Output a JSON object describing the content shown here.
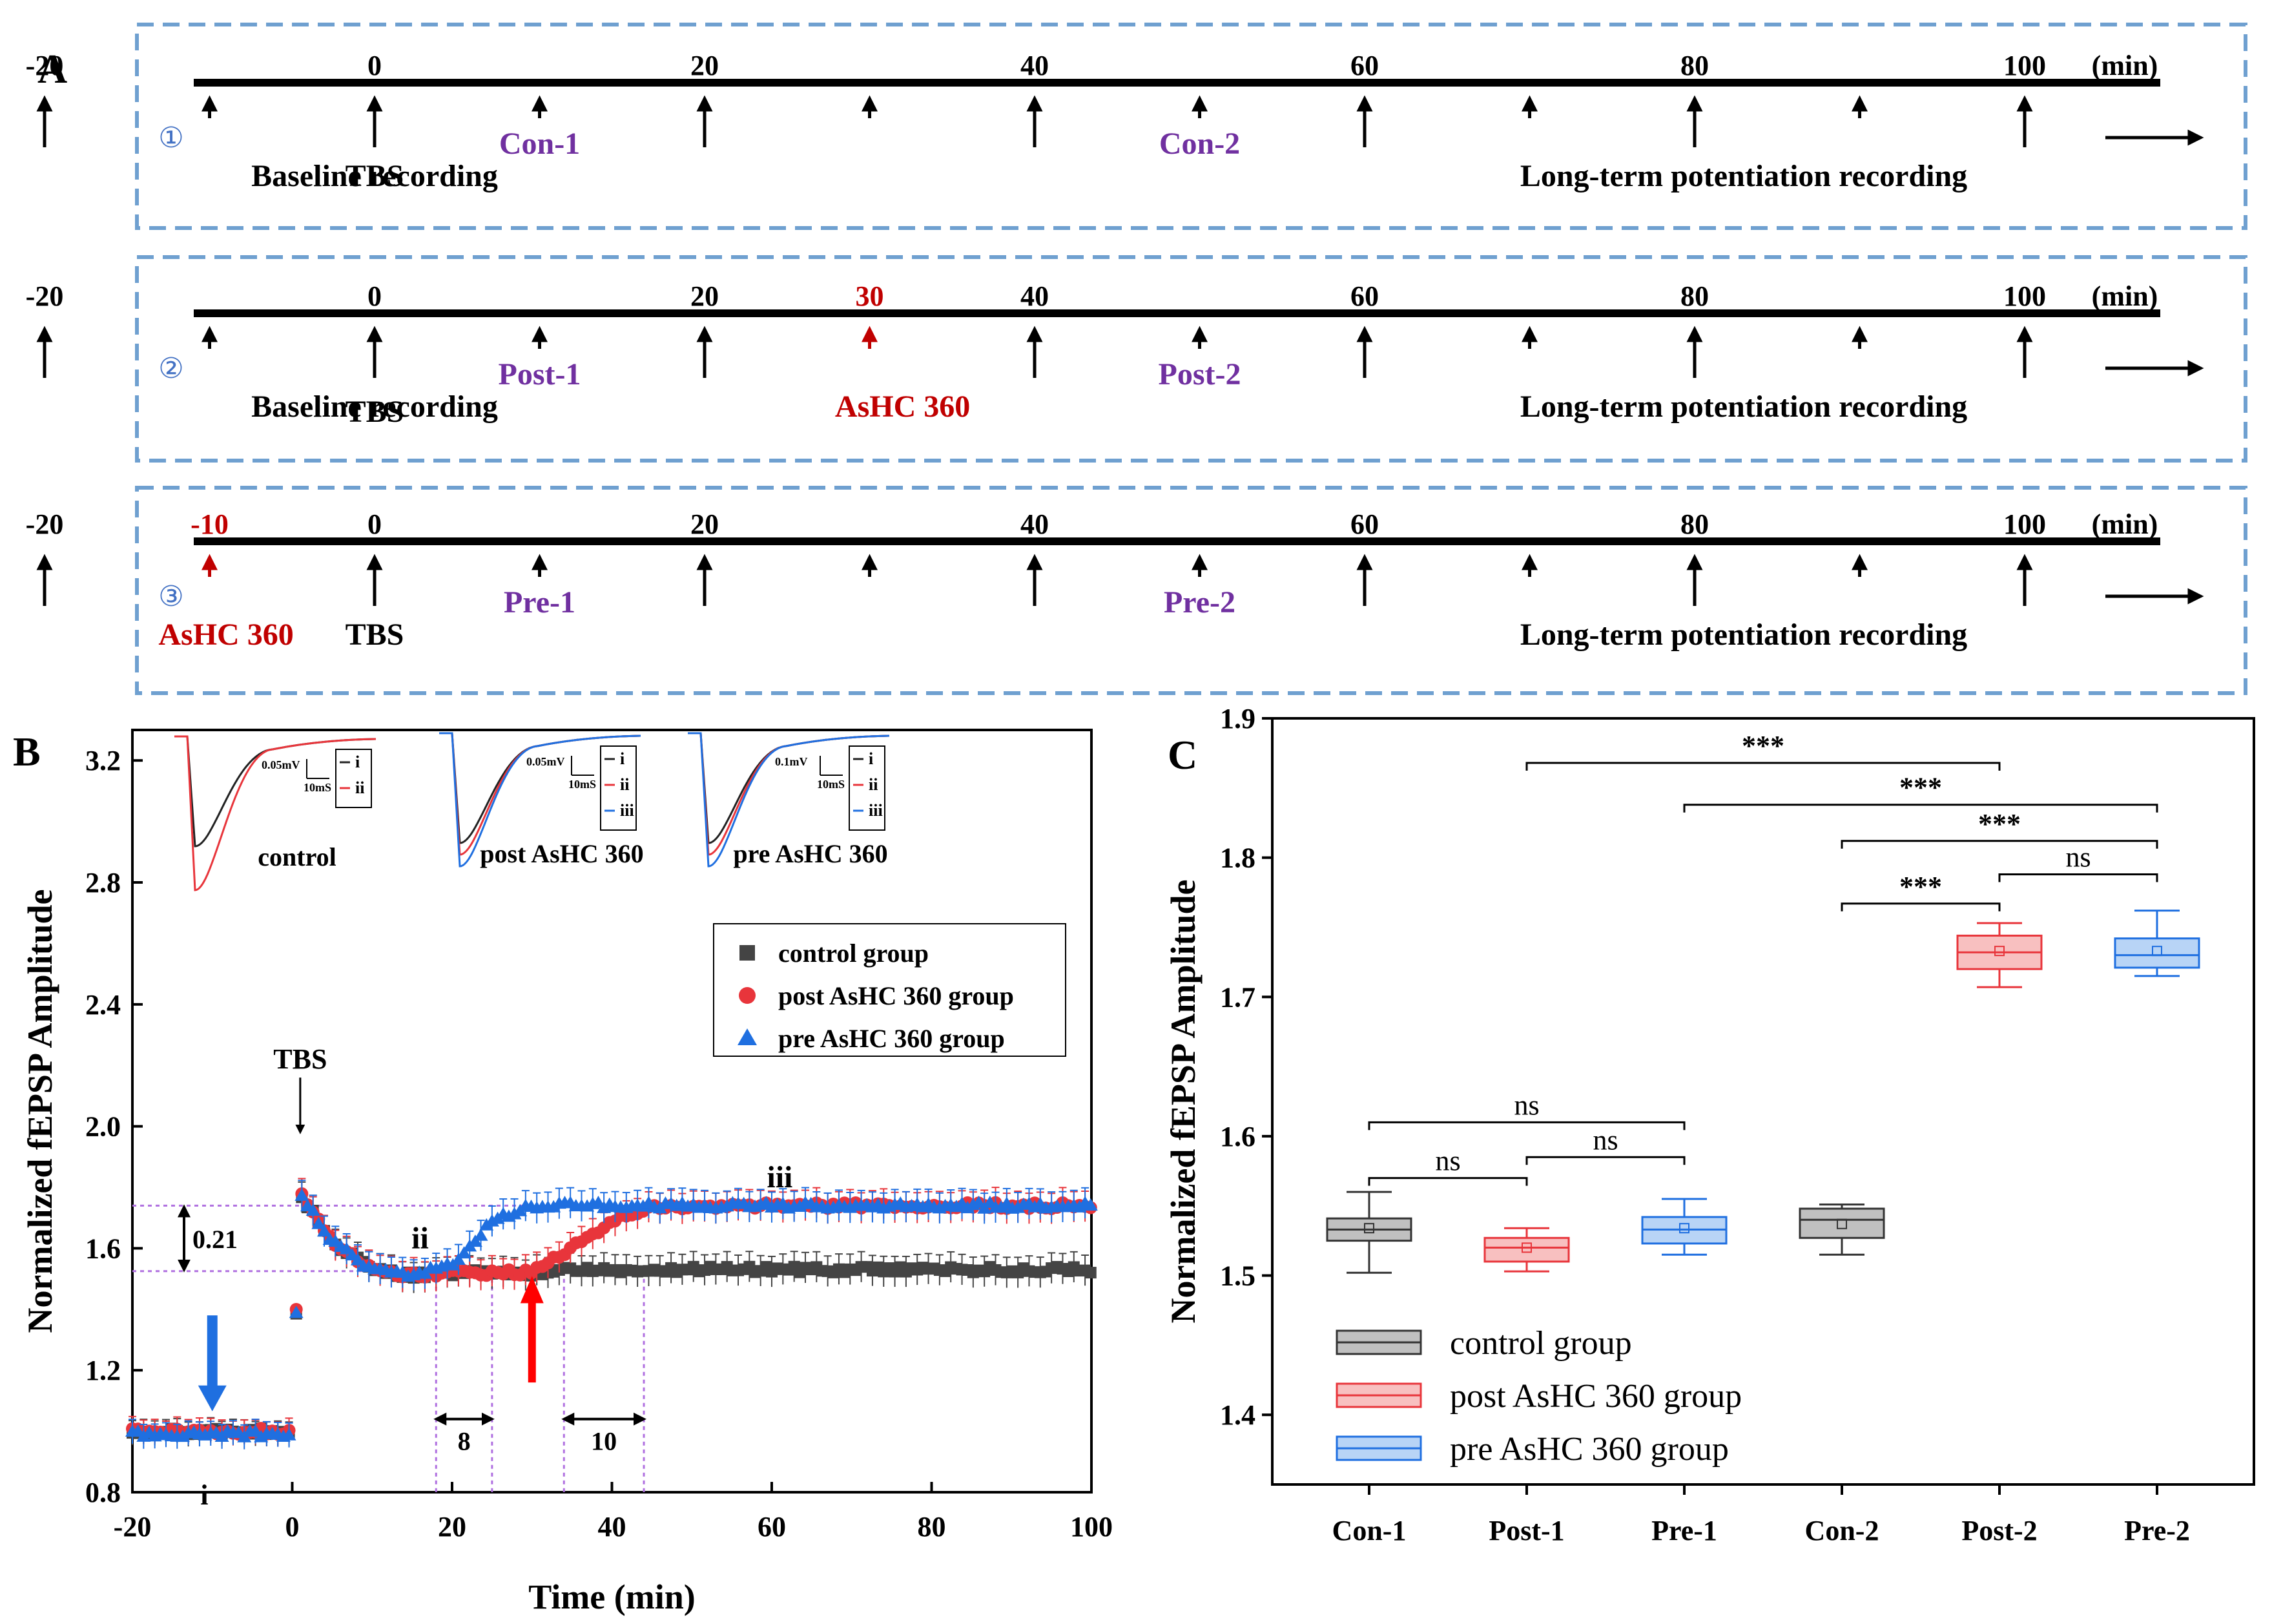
{
  "panel_a": {
    "letter": "A",
    "unit": "(min)",
    "rows": [
      {
        "circle": "①",
        "ticks": [
          "-20",
          "0",
          "20",
          "40",
          "60",
          "80",
          "100"
        ],
        "red_tick": "",
        "labels": {
          "baseline": "Baseline recording",
          "tbs": "TBS",
          "mid1": "Con-1",
          "mid2": "Con-2",
          "red": "",
          "ltp": "Long-term potentiation recording"
        }
      },
      {
        "circle": "②",
        "ticks": [
          "-20",
          "0",
          "20",
          "40",
          "60",
          "80",
          "100"
        ],
        "red_tick": "30",
        "labels": {
          "baseline": "Baseline recording",
          "tbs": "TBS",
          "mid1": "Post-1",
          "mid2": "Post-2",
          "red": "AsHC 360",
          "ltp": "Long-term potentiation recording"
        }
      },
      {
        "circle": "③",
        "ticks": [
          "-20",
          "0",
          "20",
          "40",
          "60",
          "80",
          "100"
        ],
        "red_tick": "-10",
        "labels": {
          "baseline": "",
          "tbs": "TBS",
          "mid1": "Pre-1",
          "mid2": "Pre-2",
          "red": "AsHC 360",
          "ltp": "Long-term potentiation recording"
        }
      }
    ]
  },
  "panel_b": {
    "letter": "B",
    "tbs_label": "TBS",
    "diff_label": "0.21",
    "gap1_label": "8",
    "gap2_label": "10",
    "roman": {
      "i": "i",
      "ii": "ii",
      "iii": "iii"
    },
    "insets": [
      {
        "title": "control",
        "scale": "0.05mV",
        "time": "10mS",
        "legend": [
          "i",
          "ii"
        ]
      },
      {
        "title": "post AsHC 360",
        "scale": "0.05mV",
        "time": "10mS",
        "legend": [
          "i",
          "ii",
          "iii"
        ]
      },
      {
        "title": "pre AsHC 360",
        "scale": "0.1mV",
        "time": "10mS",
        "legend": [
          "i",
          "ii",
          "iii"
        ]
      }
    ]
  },
  "panel_c": {
    "letter": "C"
  },
  "colors": {
    "control": "#444444",
    "post": "#e8353b",
    "pre": "#1f6fe0",
    "purple": "#7030a0",
    "red": "#c00000",
    "dashed_box": "#6fa0d0",
    "guide": "#b070e0"
  },
  "chart_data": [
    {
      "type": "line",
      "title": "",
      "xlabel": "Time (min)",
      "ylabel": "Normalized fEPSP Amplitude",
      "xlim": [
        -20,
        100
      ],
      "ylim": [
        0.8,
        3.3
      ],
      "xticks": [
        -20,
        0,
        20,
        40,
        60,
        80,
        100
      ],
      "yticks": [
        0.8,
        1.2,
        1.6,
        2.0,
        2.4,
        2.8,
        3.2
      ],
      "legend_position": "right",
      "series": [
        {
          "name": "control group",
          "marker": "square",
          "x": [
            -20,
            -10,
            0,
            1,
            5,
            10,
            15,
            20,
            25,
            30,
            35,
            40,
            50,
            60,
            70,
            80,
            90,
            100
          ],
          "y": [
            1.0,
            1.0,
            1.0,
            1.78,
            1.62,
            1.53,
            1.51,
            1.52,
            1.52,
            1.52,
            1.53,
            1.53,
            1.53,
            1.53,
            1.53,
            1.53,
            1.53,
            1.53
          ]
        },
        {
          "name": "post AsHC 360 group",
          "marker": "circle",
          "x": [
            -20,
            -10,
            0,
            1,
            5,
            10,
            15,
            20,
            25,
            30,
            35,
            40,
            45,
            50,
            60,
            70,
            80,
            90,
            100
          ],
          "y": [
            1.0,
            1.0,
            1.0,
            1.78,
            1.62,
            1.53,
            1.51,
            1.52,
            1.52,
            1.52,
            1.6,
            1.69,
            1.73,
            1.74,
            1.74,
            1.74,
            1.74,
            1.74,
            1.74
          ]
        },
        {
          "name": "pre AsHC 360 group",
          "marker": "triangle",
          "x": [
            -20,
            -10,
            0,
            1,
            5,
            10,
            15,
            20,
            25,
            30,
            35,
            40,
            50,
            60,
            70,
            80,
            90,
            100
          ],
          "y": [
            0.99,
            0.99,
            0.99,
            1.78,
            1.62,
            1.53,
            1.51,
            1.55,
            1.69,
            1.74,
            1.74,
            1.74,
            1.74,
            1.74,
            1.74,
            1.74,
            1.74,
            1.74
          ]
        }
      ],
      "annotations": [
        "TBS",
        "0.21",
        "8",
        "10",
        "i",
        "ii",
        "iii"
      ]
    },
    {
      "type": "box",
      "title": "",
      "xlabel": "",
      "ylabel": "Normalized fEPSP Amplitude",
      "ylim": [
        1.35,
        1.9
      ],
      "yticks": [
        1.4,
        1.5,
        1.6,
        1.7,
        1.8,
        1.9
      ],
      "categories": [
        "Con-1",
        "Post-1",
        "Pre-1",
        "Con-2",
        "Post-2",
        "Pre-2"
      ],
      "groups": [
        "control",
        "post",
        "pre",
        "control",
        "post",
        "pre"
      ],
      "legend": [
        "control group",
        "post AsHC 360 group",
        "pre AsHC 360 group"
      ],
      "boxes": [
        {
          "min": 1.502,
          "q1": 1.525,
          "median": 1.533,
          "mean": 1.534,
          "q3": 1.541,
          "max": 1.56
        },
        {
          "min": 1.503,
          "q1": 1.51,
          "median": 1.52,
          "mean": 1.52,
          "q3": 1.527,
          "max": 1.534
        },
        {
          "min": 1.515,
          "q1": 1.523,
          "median": 1.533,
          "mean": 1.534,
          "q3": 1.542,
          "max": 1.555
        },
        {
          "min": 1.515,
          "q1": 1.527,
          "median": 1.54,
          "mean": 1.537,
          "q3": 1.548,
          "max": 1.551
        },
        {
          "min": 1.707,
          "q1": 1.72,
          "median": 1.732,
          "mean": 1.733,
          "q3": 1.744,
          "max": 1.753
        },
        {
          "min": 1.715,
          "q1": 1.721,
          "median": 1.73,
          "mean": 1.733,
          "q3": 1.742,
          "max": 1.762
        }
      ],
      "significance": [
        {
          "from": "Post-1",
          "to": "Post-2",
          "label": "***",
          "y": 1.868
        },
        {
          "from": "Pre-1",
          "to": "Pre-2",
          "label": "***",
          "y": 1.838
        },
        {
          "from": "Con-2",
          "to": "Pre-2",
          "label": "***",
          "y": 1.812
        },
        {
          "from": "Post-2",
          "to": "Pre-2",
          "label": "ns",
          "y": 1.788
        },
        {
          "from": "Con-2",
          "to": "Post-2",
          "label": "***",
          "y": 1.767
        },
        {
          "from": "Con-1",
          "to": "Pre-1",
          "label": "ns",
          "y": 1.61
        },
        {
          "from": "Post-1",
          "to": "Pre-1",
          "label": "ns",
          "y": 1.585
        },
        {
          "from": "Con-1",
          "to": "Post-1",
          "label": "ns",
          "y": 1.57
        }
      ]
    }
  ]
}
